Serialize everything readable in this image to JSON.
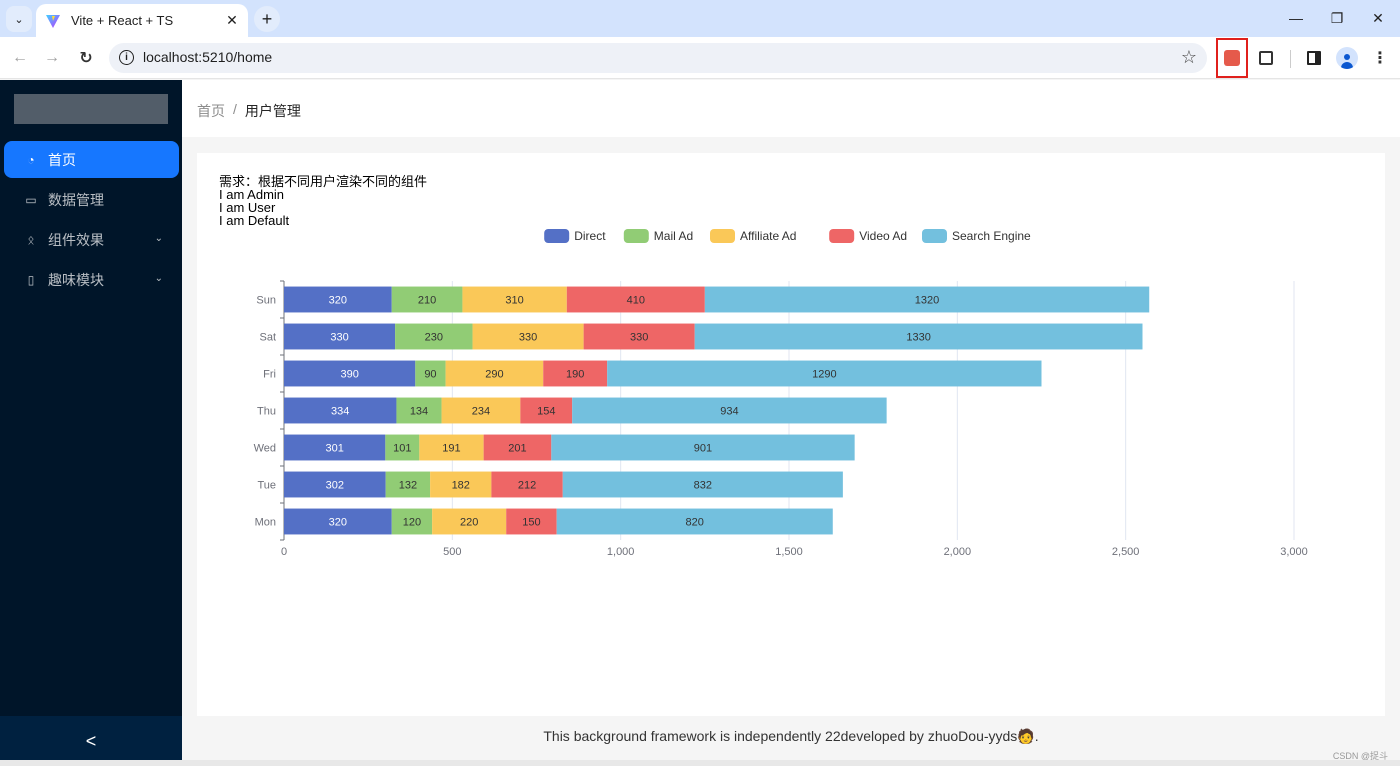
{
  "browser": {
    "tab_title": "Vite + React + TS",
    "url": "localhost:5210/home",
    "icons": [
      "tab-list-icon",
      "vite-favicon",
      "close-icon",
      "plus-icon",
      "minimize-icon",
      "restore-icon",
      "close-window-icon",
      "back-icon",
      "forward-icon",
      "reload-icon",
      "info-icon",
      "star-icon",
      "extension-icon",
      "puzzle-icon",
      "side-panel-icon",
      "profile-icon",
      "menu-icon"
    ],
    "glyphs": {
      "tab_list": "⌄",
      "close": "✕",
      "new_tab": "+",
      "minimize": "—",
      "restore": "❐",
      "close_window": "✕",
      "back": "←",
      "forward": "→",
      "reload": "↻",
      "info": "i",
      "star": "☆",
      "menu": "⋮",
      "collapse": "<"
    }
  },
  "sidebar": {
    "items": [
      {
        "label": "首页",
        "icon": "pie-chart-icon",
        "glyph": "◔",
        "active": true
      },
      {
        "label": "数据管理",
        "icon": "desktop-icon",
        "glyph": "▭",
        "active": false
      },
      {
        "label": "组件效果",
        "icon": "team-icon",
        "glyph": "ᛟ",
        "active": false,
        "arrow": "⌄"
      },
      {
        "label": "趣味模块",
        "icon": "file-icon",
        "glyph": "▯",
        "active": false,
        "arrow": "⌄"
      }
    ],
    "accent": "#1677ff",
    "background": "#001529"
  },
  "breadcrumb": {
    "home": "首页",
    "separator": "/",
    "current": "用户管理"
  },
  "content": {
    "requirement": "需求：根据不同用户渲染不同的组件",
    "lines": [
      "I am Admin",
      "I am User",
      "I am Default"
    ]
  },
  "footer": {
    "text": "This background framework is independently 22developed by zhuoDou-yyds",
    "emoji": "🧑",
    "period": ".",
    "watermark": "CSDN @捉斗"
  },
  "chart_data": {
    "type": "bar",
    "orientation": "horizontal",
    "stacked": true,
    "categories": [
      "Mon",
      "Tue",
      "Wed",
      "Thu",
      "Fri",
      "Sat",
      "Sun"
    ],
    "series": [
      {
        "name": "Direct",
        "color": "#5470c6",
        "label_color": "#ffffff",
        "values": [
          320,
          302,
          301,
          334,
          390,
          330,
          320
        ]
      },
      {
        "name": "Mail Ad",
        "color": "#91cc75",
        "label_color": "#333333",
        "values": [
          120,
          132,
          101,
          134,
          90,
          230,
          210
        ]
      },
      {
        "name": "Affiliate Ad",
        "color": "#fac858",
        "label_color": "#333333",
        "values": [
          220,
          182,
          191,
          234,
          290,
          330,
          310
        ]
      },
      {
        "name": "Video Ad",
        "color": "#ee6666",
        "label_color": "#333333",
        "values": [
          150,
          212,
          201,
          154,
          190,
          330,
          410
        ]
      },
      {
        "name": "Search Engine",
        "color": "#73c0de",
        "label_color": "#333333",
        "values": [
          820,
          832,
          901,
          934,
          1290,
          1330,
          1320
        ]
      }
    ],
    "xlim": [
      0,
      3000
    ],
    "xticks": [
      0,
      500,
      1000,
      1500,
      2000,
      2500,
      3000
    ],
    "xtick_labels": [
      "0",
      "500",
      "1,000",
      "1,500",
      "2,000",
      "2,500",
      "3,000"
    ],
    "grid": true,
    "legend_position": "top-center",
    "title": "",
    "xlabel": "",
    "ylabel": ""
  }
}
